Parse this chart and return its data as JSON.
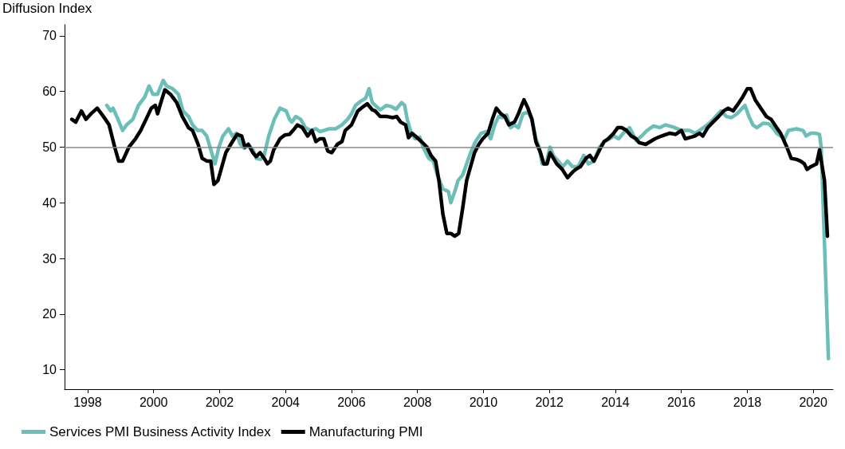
{
  "chart_data": {
    "type": "line",
    "ylabel": "Diffusion Index",
    "xlim": [
      1997.3,
      2020.6
    ],
    "xticks": [
      1998,
      2000,
      2002,
      2004,
      2006,
      2008,
      2010,
      2012,
      2014,
      2016,
      2018,
      2020
    ],
    "ylim": [
      6.5,
      72
    ],
    "yticks": [
      10,
      20,
      30,
      40,
      50,
      60,
      70
    ],
    "grid": false,
    "legend": "bottom left",
    "marker": "none",
    "line_style": "solid",
    "ref_lines": [
      {
        "axis": "y",
        "value": 50,
        "label": null,
        "color": "#888888"
      }
    ],
    "series": [
      {
        "name": "Services PMI Business Activity Index",
        "color": "#6bbfb8",
        "x": [
          1998.58,
          1998.7,
          1998.77,
          1998.92,
          1999.06,
          1999.18,
          1999.37,
          1999.54,
          1999.73,
          1999.86,
          1999.98,
          2000.12,
          2000.29,
          2000.39,
          2000.58,
          2000.75,
          2000.89,
          2001.06,
          2001.18,
          2001.33,
          2001.47,
          2001.61,
          2001.76,
          2001.86,
          2001.98,
          2002.1,
          2002.27,
          2002.39,
          2002.51,
          2002.63,
          2002.75,
          2002.87,
          2003.01,
          2003.11,
          2003.25,
          2003.35,
          2003.49,
          2003.66,
          2003.83,
          2004.02,
          2004.12,
          2004.19,
          2004.31,
          2004.46,
          2004.6,
          2004.75,
          2004.92,
          2005.04,
          2005.16,
          2005.33,
          2005.52,
          2005.71,
          2005.88,
          2006.0,
          2006.12,
          2006.29,
          2006.43,
          2006.53,
          2006.63,
          2006.72,
          2006.87,
          2007.06,
          2007.2,
          2007.35,
          2007.52,
          2007.61,
          2007.69,
          2007.81,
          2007.93,
          2008.07,
          2008.17,
          2008.34,
          2008.48,
          2008.6,
          2008.77,
          2008.94,
          2009.01,
          2009.13,
          2009.23,
          2009.37,
          2009.49,
          2009.61,
          2009.76,
          2009.93,
          2010.1,
          2010.22,
          2010.34,
          2010.46,
          2010.58,
          2010.7,
          2010.82,
          2010.94,
          2011.06,
          2011.2,
          2011.35,
          2011.47,
          2011.59,
          2011.69,
          2011.78,
          2011.9,
          2012.02,
          2012.12,
          2012.27,
          2012.41,
          2012.55,
          2012.7,
          2012.87,
          2013.04,
          2013.18,
          2013.35,
          2013.52,
          2013.66,
          2013.83,
          2013.95,
          2014.1,
          2014.24,
          2014.43,
          2014.63,
          2014.8,
          2014.96,
          2015.16,
          2015.35,
          2015.52,
          2015.76,
          2016.0,
          2016.24,
          2016.41,
          2016.55,
          2016.72,
          2016.89,
          2017.04,
          2017.2,
          2017.37,
          2017.52,
          2017.69,
          2017.93,
          2018.05,
          2018.17,
          2018.29,
          2018.48,
          2018.65,
          2018.77,
          2018.89,
          2019.13,
          2019.25,
          2019.49,
          2019.69,
          2019.78,
          2019.93,
          2020.07,
          2020.19,
          2020.24,
          2020.46
        ],
        "values": [
          57.5,
          56.5,
          57,
          55,
          53,
          54,
          55,
          57.5,
          59,
          61,
          59.5,
          59.5,
          62,
          61,
          60.5,
          59.5,
          56.5,
          55.5,
          54,
          53,
          53,
          52,
          49,
          47,
          50,
          52,
          53.3,
          52,
          52.5,
          50.5,
          49.8,
          50.5,
          49.5,
          48,
          47.8,
          48.5,
          52,
          55,
          57,
          56.5,
          55,
          54.5,
          55.5,
          55,
          53.5,
          53,
          53.3,
          52.8,
          53,
          53.3,
          53.3,
          54,
          55,
          56,
          57.5,
          58.3,
          58.8,
          60.5,
          58,
          57.5,
          56.7,
          57.5,
          57.3,
          56.8,
          58,
          57.5,
          55,
          52.5,
          51.5,
          51.8,
          50,
          48,
          47.5,
          45,
          42.5,
          42,
          40,
          42,
          44,
          45,
          47,
          49,
          51,
          52.5,
          52.8,
          51.5,
          54,
          55.5,
          55.3,
          55.8,
          53.5,
          54,
          53.5,
          56,
          56.3,
          55,
          51.5,
          50,
          47,
          47,
          50,
          48.5,
          47.5,
          46.5,
          47.5,
          46.5,
          46.5,
          48.5,
          47,
          47.5,
          50,
          51,
          51.5,
          52,
          51.5,
          52.5,
          53.5,
          51.2,
          52,
          53,
          53.8,
          53.5,
          54,
          53.6,
          53,
          53,
          52.5,
          53,
          53.7,
          54.5,
          55.5,
          56.5,
          55.5,
          55.3,
          56,
          57.5,
          55.5,
          54,
          53.5,
          54.3,
          54.2,
          53.5,
          52.5,
          51.5,
          53,
          53.3,
          53,
          52,
          52.5,
          52.5,
          52.3,
          50,
          12
        ]
      },
      {
        "name": "Manufacturing PMI",
        "color": "#000000",
        "x": [
          1997.52,
          1997.64,
          1997.81,
          1997.95,
          1998.1,
          1998.29,
          1998.48,
          1998.65,
          1998.82,
          1998.94,
          1999.06,
          1999.25,
          1999.45,
          1999.61,
          1999.81,
          1999.93,
          2000.05,
          2000.12,
          2000.22,
          2000.34,
          2000.51,
          2000.7,
          2000.87,
          2001.06,
          2001.18,
          2001.35,
          2001.47,
          2001.61,
          2001.73,
          2001.83,
          2001.95,
          2002.07,
          2002.19,
          2002.39,
          2002.53,
          2002.67,
          2002.77,
          2002.87,
          2003.01,
          2003.11,
          2003.23,
          2003.35,
          2003.45,
          2003.54,
          2003.64,
          2003.83,
          2003.98,
          2004.12,
          2004.27,
          2004.36,
          2004.51,
          2004.67,
          2004.8,
          2004.92,
          2005.04,
          2005.16,
          2005.28,
          2005.4,
          2005.57,
          2005.71,
          2005.81,
          2006.0,
          2006.19,
          2006.36,
          2006.48,
          2006.63,
          2006.72,
          2006.87,
          2007.08,
          2007.25,
          2007.37,
          2007.49,
          2007.64,
          2007.73,
          2007.83,
          2007.93,
          2008.12,
          2008.29,
          2008.41,
          2008.55,
          2008.65,
          2008.77,
          2008.89,
          2009.01,
          2009.13,
          2009.25,
          2009.37,
          2009.49,
          2009.61,
          2009.73,
          2009.86,
          2009.98,
          2010.14,
          2010.27,
          2010.39,
          2010.53,
          2010.65,
          2010.77,
          2010.94,
          2011.06,
          2011.16,
          2011.23,
          2011.35,
          2011.47,
          2011.59,
          2011.73,
          2011.83,
          2011.93,
          2012.02,
          2012.12,
          2012.22,
          2012.39,
          2012.55,
          2012.7,
          2012.8,
          2012.94,
          2013.11,
          2013.23,
          2013.35,
          2013.52,
          2013.66,
          2013.78,
          2013.95,
          2014.07,
          2014.19,
          2014.34,
          2014.48,
          2014.63,
          2014.72,
          2014.92,
          2015.06,
          2015.2,
          2015.4,
          2015.64,
          2015.83,
          2016.0,
          2016.12,
          2016.24,
          2016.41,
          2016.55,
          2016.65,
          2016.8,
          2016.96,
          2017.13,
          2017.28,
          2017.42,
          2017.57,
          2017.69,
          2017.86,
          2018.0,
          2018.1,
          2018.24,
          2018.41,
          2018.58,
          2018.72,
          2018.89,
          2019.01,
          2019.2,
          2019.33,
          2019.49,
          2019.61,
          2019.73,
          2019.81,
          2019.93,
          2020.1,
          2020.19,
          2020.34,
          2020.43
        ],
        "values": [
          55,
          54.5,
          56.5,
          55,
          56,
          57,
          55.5,
          54,
          50,
          47.5,
          47.5,
          50,
          51.5,
          53,
          55.5,
          57,
          57.5,
          56,
          58,
          60.3,
          59.5,
          58,
          55.5,
          53.5,
          53,
          50.5,
          48,
          47.5,
          47.5,
          43.3,
          44,
          46.5,
          49,
          51,
          52.3,
          52,
          50,
          50.5,
          49,
          48.3,
          49,
          48,
          47,
          47.5,
          49.5,
          51.5,
          52.2,
          52.3,
          53.3,
          54,
          53.5,
          52,
          53,
          51,
          51.5,
          51.5,
          49.3,
          49,
          50.5,
          51,
          53,
          54,
          56.5,
          57.3,
          57.8,
          56.7,
          56.5,
          55.5,
          55.5,
          55.3,
          55.5,
          54.5,
          54,
          51.7,
          52.5,
          52,
          51,
          50,
          48.5,
          47.5,
          44,
          38,
          34.5,
          34.5,
          34,
          34.5,
          39,
          44,
          46.5,
          49,
          50.5,
          51.5,
          52.5,
          55,
          57,
          56,
          55.5,
          54,
          54.5,
          56,
          57.5,
          58.5,
          57,
          55,
          51,
          49,
          47,
          47,
          49,
          48,
          47,
          46,
          44.5,
          45.5,
          46,
          46.5,
          48,
          48.5,
          47.5,
          49.5,
          51,
          51.5,
          52.5,
          53.5,
          53.5,
          53,
          52,
          51.5,
          50.8,
          50.5,
          51,
          51.5,
          52,
          52.5,
          52.3,
          53,
          51.5,
          51.7,
          52,
          52.5,
          52,
          53.5,
          54.5,
          55.5,
          56.5,
          57,
          56.5,
          57.5,
          59,
          60.5,
          60.5,
          58.5,
          57,
          55.5,
          55,
          53.5,
          52.5,
          50,
          48,
          47.8,
          47.5,
          47,
          46,
          46.5,
          47,
          49.5,
          44,
          34
        ]
      }
    ]
  }
}
